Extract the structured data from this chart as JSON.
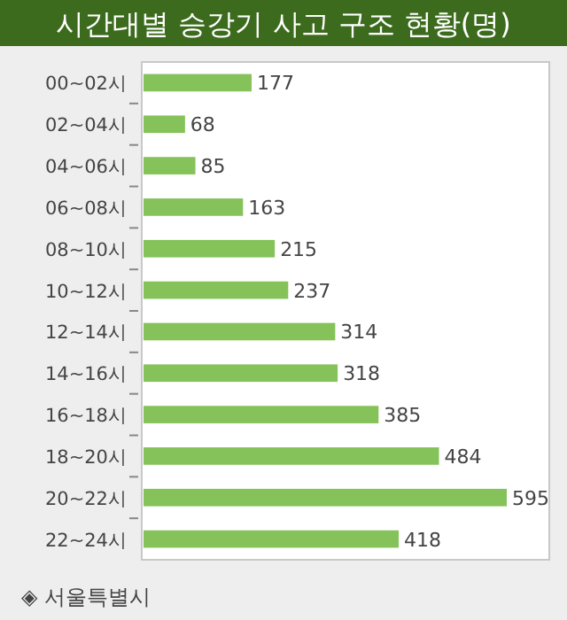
{
  "chart_data": {
    "type": "bar",
    "orientation": "horizontal",
    "title": "시간대별 승강기 사고 구조 현황(명)",
    "categories": [
      "00~02시",
      "02~04시",
      "04~06시",
      "06~08시",
      "08~10시",
      "10~12시",
      "12~14시",
      "14~16시",
      "16~18시",
      "18~20시",
      "20~22시",
      "22~24시"
    ],
    "values": [
      177,
      68,
      85,
      163,
      215,
      237,
      314,
      318,
      385,
      484,
      595,
      418
    ],
    "color": "#85c25a",
    "data_labels": true,
    "annotations": [
      "◈ 서울특별시"
    ]
  }
}
